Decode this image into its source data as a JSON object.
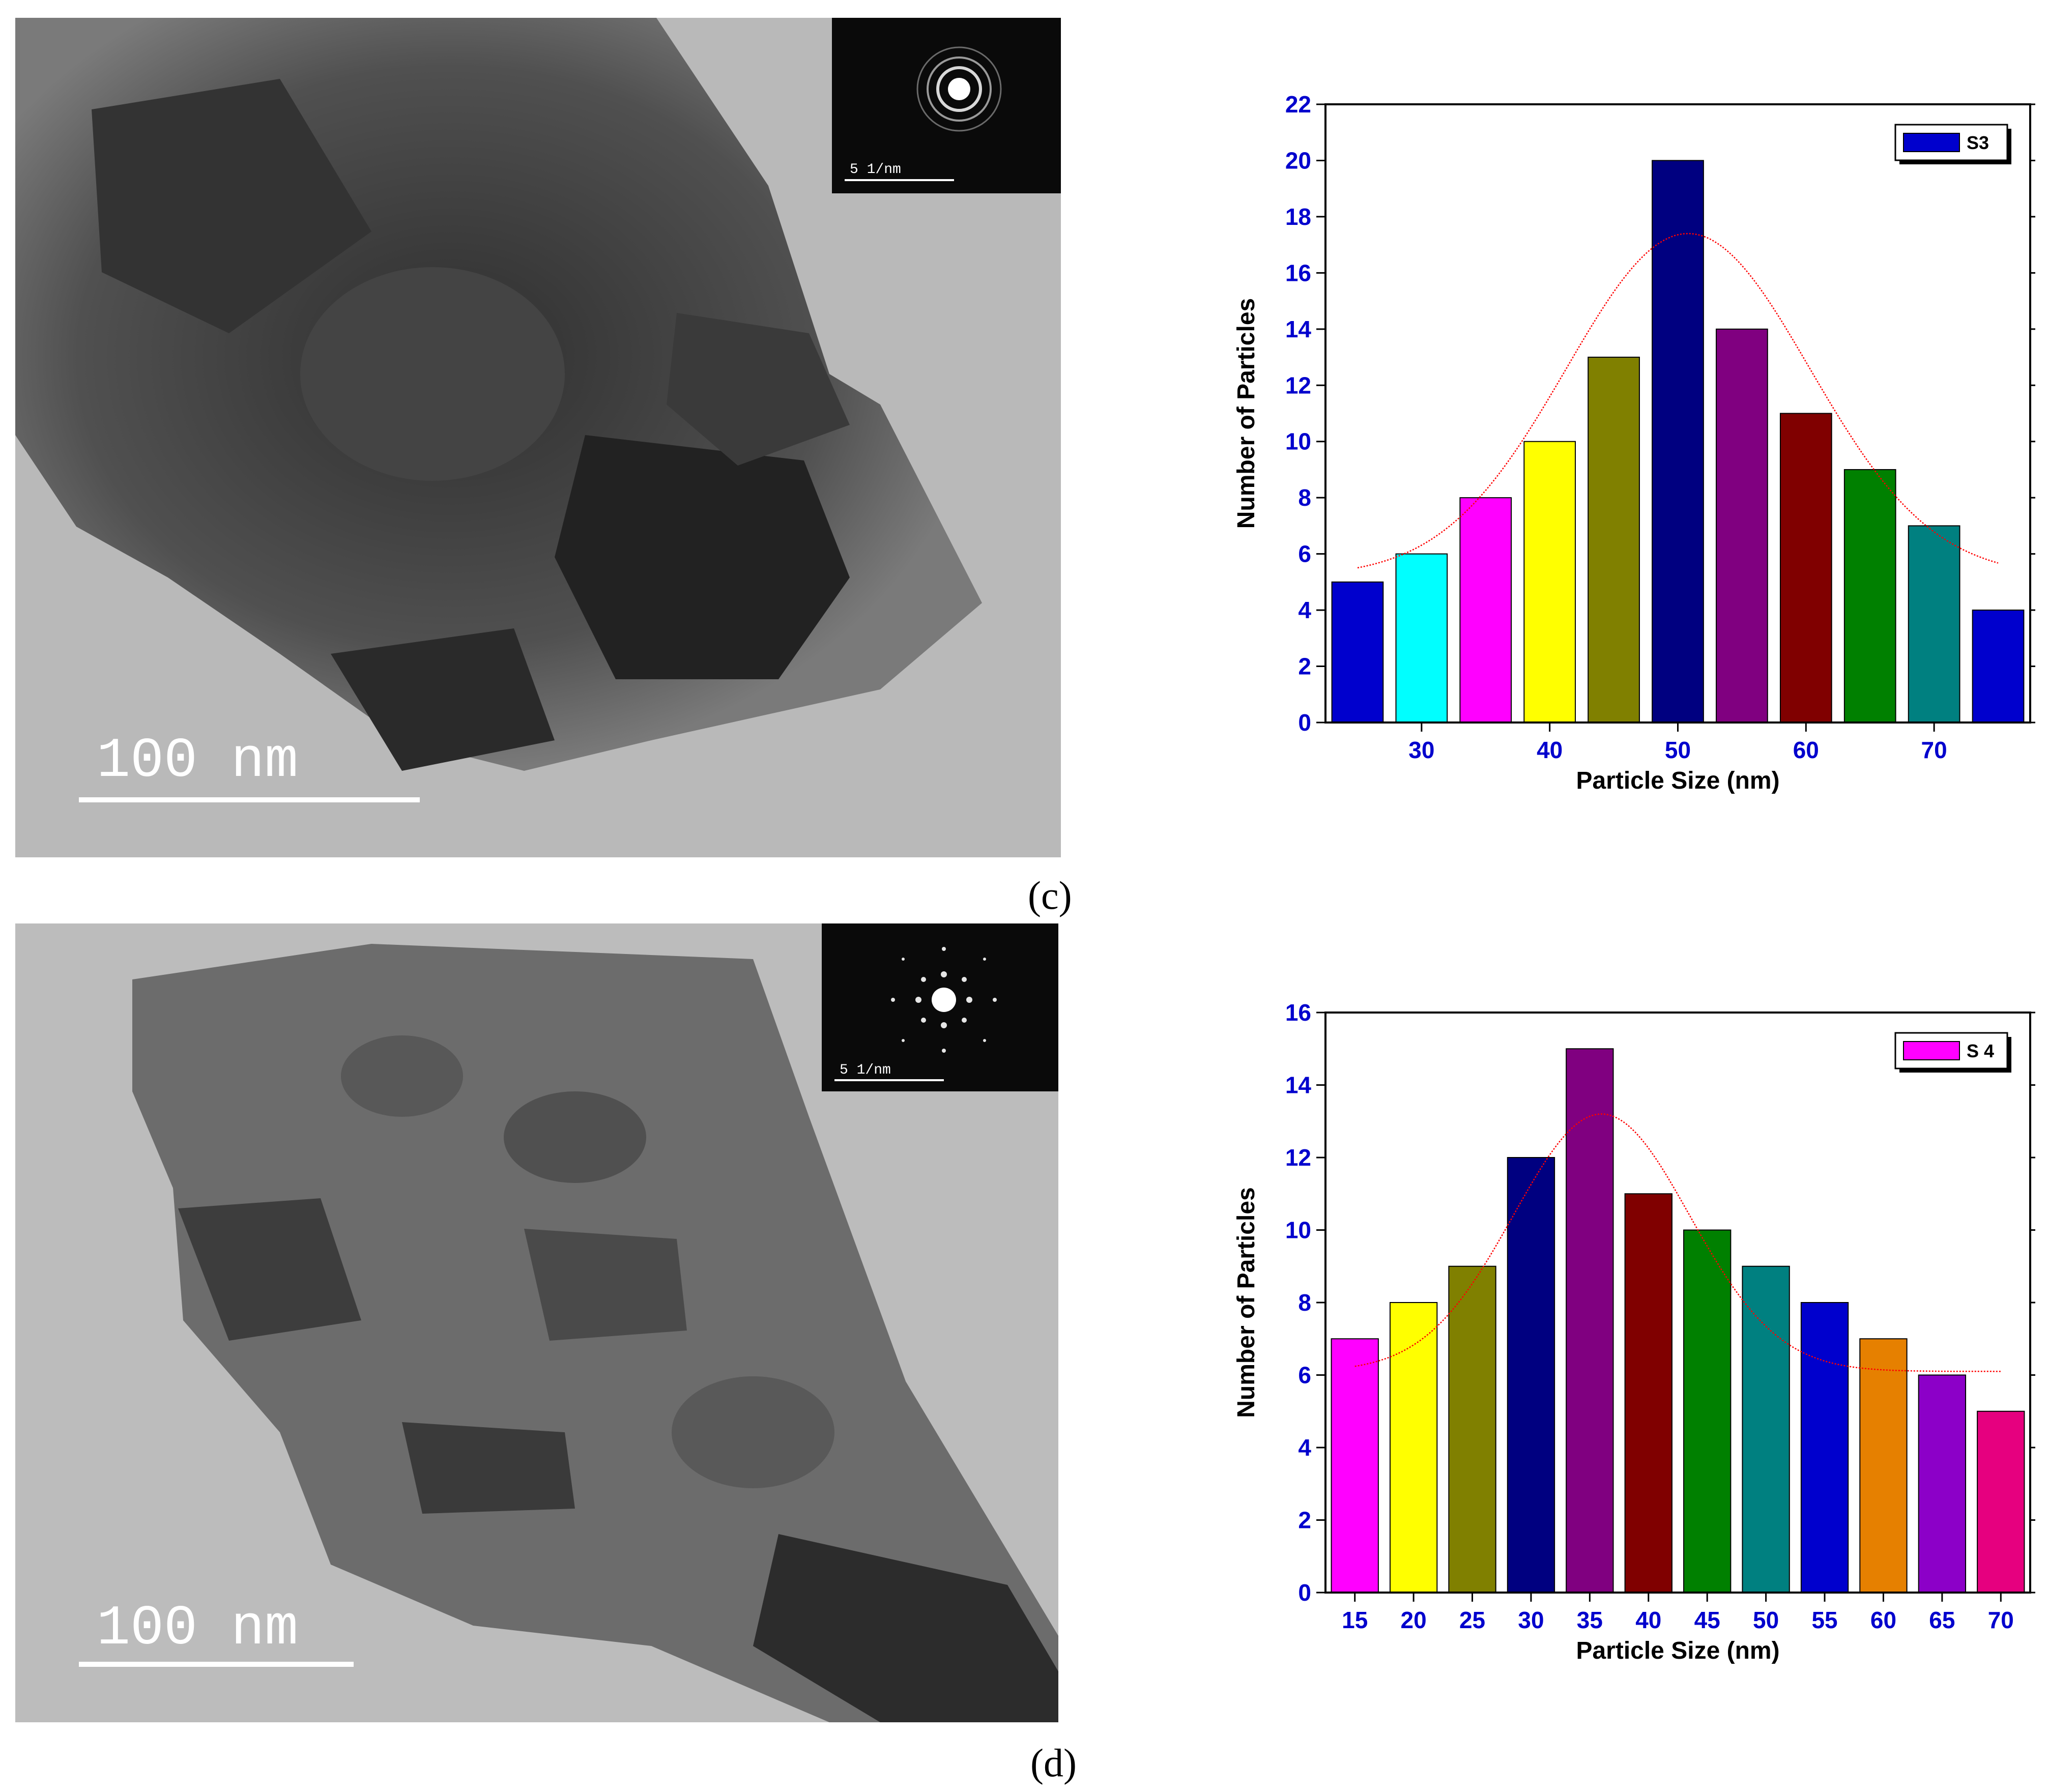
{
  "panels": [
    {
      "label": "(c)",
      "micrograph": {
        "scale_bar_text": "100 nm",
        "inset_scale_text": "5 1/nm",
        "inset_pattern": "ring-pattern"
      },
      "chart_data": {
        "type": "bar",
        "x": [
          25,
          30,
          35,
          40,
          45,
          50,
          55,
          60,
          65,
          70,
          75
        ],
        "values": [
          5,
          6,
          8,
          10,
          13,
          20,
          14,
          11,
          9,
          7,
          4
        ],
        "bar_colors": [
          "#0000cd",
          "#00ffff",
          "#ff00ff",
          "#ffff00",
          "#808000",
          "#000080",
          "#800080",
          "#800000",
          "#008000",
          "#008080",
          "#0000cd"
        ],
        "xticks": [
          30,
          40,
          50,
          60,
          70
        ],
        "xlim": [
          22.5,
          77.5
        ],
        "ylim": [
          0,
          22
        ],
        "yticks": [
          0,
          2,
          4,
          6,
          8,
          10,
          12,
          14,
          16,
          18,
          20,
          22
        ],
        "xlabel": "Particle Size (nm)",
        "ylabel": "Number of Particles",
        "legend": {
          "label": "S3",
          "color": "#0000cd",
          "position": "top-right"
        },
        "fit_curve": {
          "type": "gaussian",
          "color": "#ff0000",
          "baseline": 5.2,
          "amplitude": 12.2,
          "center": 50.8,
          "sigma": 9.5,
          "x_range": [
            25,
            75
          ]
        }
      }
    },
    {
      "label": "(d)",
      "micrograph": {
        "scale_bar_text": "100 nm",
        "inset_scale_text": "5 1/nm",
        "inset_pattern": "spot-pattern"
      },
      "chart_data": {
        "type": "bar",
        "x": [
          15,
          20,
          25,
          30,
          35,
          40,
          45,
          50,
          55,
          60,
          65,
          70
        ],
        "values": [
          7,
          8,
          9,
          12,
          15,
          11,
          10,
          9,
          8,
          7,
          6,
          5
        ],
        "bar_colors": [
          "#ff00ff",
          "#ffff00",
          "#808000",
          "#000080",
          "#800080",
          "#800000",
          "#008000",
          "#008080",
          "#0000cd",
          "#e68000",
          "#8c00c8",
          "#e6007f"
        ],
        "xticks": [
          15,
          20,
          25,
          30,
          35,
          40,
          45,
          50,
          55,
          60,
          65,
          70
        ],
        "xlim": [
          12.5,
          72.5
        ],
        "ylim": [
          0,
          16
        ],
        "yticks": [
          0,
          2,
          4,
          6,
          8,
          10,
          12,
          14,
          16
        ],
        "xlabel": "Particle Size (nm)",
        "ylabel": "Number of Particles",
        "legend": {
          "label": "S 4",
          "color": "#ff00ff",
          "position": "top-right"
        },
        "fit_curve": {
          "type": "gaussian",
          "color": "#ff0000",
          "baseline": 6.1,
          "amplitude": 7.1,
          "center": 36,
          "sigma": 7.5,
          "x_range": [
            15,
            70
          ]
        }
      }
    }
  ]
}
